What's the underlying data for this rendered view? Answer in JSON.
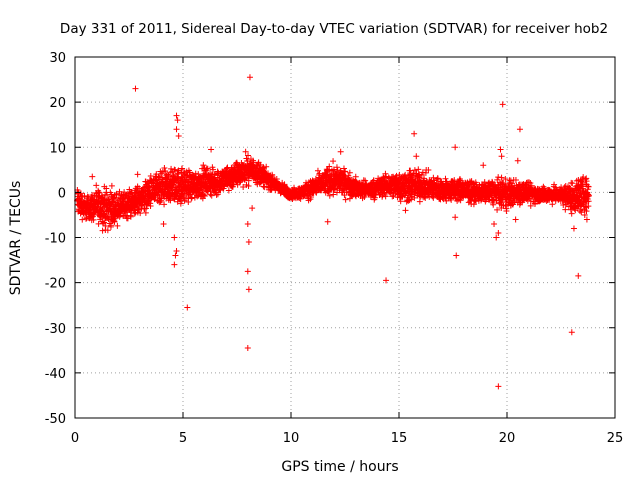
{
  "chart_data": {
    "type": "scatter",
    "title": "Day 331 of 2011, Sidereal Day-to-day VTEC variation (SDTVAR) for receiver hob2",
    "xlabel": "GPS time / hours",
    "ylabel": "SDTVAR / TECUs",
    "xlim": [
      0,
      25
    ],
    "ylim": [
      -50,
      30
    ],
    "xticks": [
      0,
      5,
      10,
      15,
      20,
      25
    ],
    "yticks": [
      -50,
      -40,
      -30,
      -20,
      -10,
      0,
      10,
      20,
      30
    ],
    "grid": true,
    "marker": "+",
    "color": "#ff0000",
    "band": {
      "description": "dense cloud of points; lower and upper envelope in data units",
      "x": [
        0.1,
        0.5,
        1.0,
        1.5,
        2.0,
        2.5,
        3.0,
        3.5,
        4.0,
        4.5,
        5.0,
        5.5,
        6.0,
        6.5,
        7.0,
        7.5,
        8.0,
        8.5,
        9.0,
        9.5,
        10.0,
        10.5,
        11.0,
        11.5,
        12.0,
        12.5,
        13.0,
        13.5,
        14.0,
        14.5,
        15.0,
        15.5,
        16.0,
        16.5,
        17.0,
        17.5,
        18.0,
        18.5,
        19.0,
        19.5,
        20.0,
        20.5,
        21.0,
        21.5,
        22.0,
        22.5,
        23.0,
        23.5,
        23.8
      ],
      "low": [
        -7,
        -7,
        -8,
        -10,
        -8,
        -7,
        -6,
        -5,
        -5,
        -4,
        -4,
        -3,
        -2,
        -2,
        -1,
        0,
        1,
        1,
        0,
        -1,
        -2,
        -2,
        -2,
        -2,
        -2,
        -2,
        -2,
        -2,
        -2,
        -2,
        -3,
        -4,
        -3,
        -3,
        -3,
        -3,
        -3,
        -3,
        -3,
        -4,
        -5,
        -4,
        -3,
        -3,
        -3,
        -3,
        -6,
        -6,
        -5
      ],
      "high": [
        3,
        0,
        2,
        3,
        1,
        2,
        3,
        5,
        6,
        7,
        7,
        6,
        7,
        6,
        7,
        8,
        9,
        8,
        5,
        3,
        1,
        2,
        4,
        6,
        8,
        6,
        4,
        3,
        4,
        5,
        6,
        7,
        6,
        5,
        4,
        4,
        4,
        3,
        3,
        4,
        4,
        4,
        3,
        2,
        2,
        2,
        4,
        5,
        4
      ]
    },
    "outliers": [
      {
        "x": 0.8,
        "y": 3.5
      },
      {
        "x": 2.8,
        "y": 23
      },
      {
        "x": 2.9,
        "y": 4
      },
      {
        "x": 4.1,
        "y": -7
      },
      {
        "x": 4.7,
        "y": 17
      },
      {
        "x": 4.75,
        "y": 16
      },
      {
        "x": 4.7,
        "y": 14
      },
      {
        "x": 4.8,
        "y": 12.5
      },
      {
        "x": 4.6,
        "y": -10
      },
      {
        "x": 4.65,
        "y": -14
      },
      {
        "x": 4.6,
        "y": -16
      },
      {
        "x": 4.7,
        "y": -13
      },
      {
        "x": 5.2,
        "y": -25.5
      },
      {
        "x": 4.9,
        "y": -2.5
      },
      {
        "x": 6.3,
        "y": 9.5
      },
      {
        "x": 8.1,
        "y": 25.5
      },
      {
        "x": 7.9,
        "y": 9
      },
      {
        "x": 8.0,
        "y": -7
      },
      {
        "x": 8.05,
        "y": -11
      },
      {
        "x": 8.0,
        "y": -17.5
      },
      {
        "x": 8.05,
        "y": -21.5
      },
      {
        "x": 8.0,
        "y": -34.5
      },
      {
        "x": 8.2,
        "y": -3.5
      },
      {
        "x": 11.7,
        "y": -6.5
      },
      {
        "x": 12.3,
        "y": 9
      },
      {
        "x": 14.4,
        "y": -19.5
      },
      {
        "x": 15.3,
        "y": -4
      },
      {
        "x": 15.7,
        "y": 13
      },
      {
        "x": 15.8,
        "y": 8
      },
      {
        "x": 17.6,
        "y": 10
      },
      {
        "x": 17.6,
        "y": -5.5
      },
      {
        "x": 17.65,
        "y": -14
      },
      {
        "x": 18.9,
        "y": 6
      },
      {
        "x": 19.5,
        "y": -10
      },
      {
        "x": 19.6,
        "y": -9
      },
      {
        "x": 19.4,
        "y": -7
      },
      {
        "x": 19.8,
        "y": 19.5
      },
      {
        "x": 19.7,
        "y": 9.5
      },
      {
        "x": 19.75,
        "y": 8
      },
      {
        "x": 19.6,
        "y": -43
      },
      {
        "x": 20.4,
        "y": -6
      },
      {
        "x": 20.5,
        "y": 7
      },
      {
        "x": 20.6,
        "y": 14
      },
      {
        "x": 21.1,
        "y": -3
      },
      {
        "x": 23.1,
        "y": -8
      },
      {
        "x": 23.0,
        "y": -31
      },
      {
        "x": 23.3,
        "y": -18.5
      },
      {
        "x": 23.6,
        "y": -5
      },
      {
        "x": 23.7,
        "y": -6
      }
    ]
  }
}
